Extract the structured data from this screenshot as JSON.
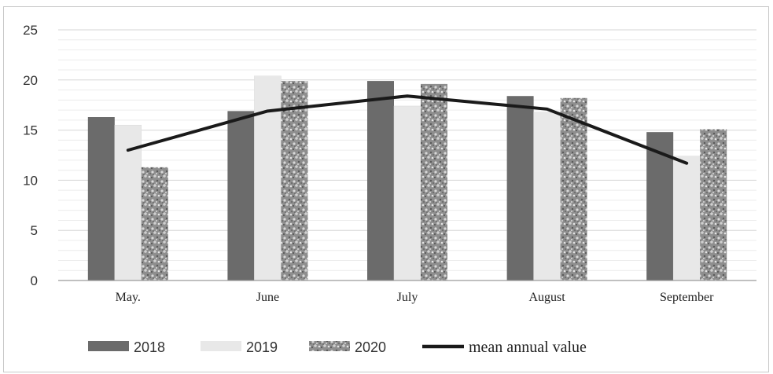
{
  "chart_data": {
    "type": "bar",
    "categories": [
      "May.",
      "June",
      "July",
      "August",
      "September"
    ],
    "series": [
      {
        "name": "2018",
        "values": [
          16.3,
          16.9,
          19.9,
          18.4,
          14.8
        ],
        "color": "#6b6b6b",
        "pattern": "solid"
      },
      {
        "name": "2019",
        "values": [
          15.5,
          20.4,
          17.4,
          16.8,
          12.4
        ],
        "color": "#e8e8e8",
        "pattern": "solid"
      },
      {
        "name": "2020",
        "values": [
          11.3,
          19.9,
          19.6,
          18.2,
          15.1
        ],
        "color": "#9a9a9a",
        "pattern": "speckle"
      }
    ],
    "line": {
      "name": "mean annual value",
      "values": [
        13.0,
        16.9,
        18.4,
        17.1,
        11.7
      ],
      "color": "#1a1a1a"
    },
    "ylim": [
      0,
      25
    ],
    "yticks": [
      0,
      5,
      10,
      15,
      20,
      25
    ],
    "minor_grid_step": 1,
    "grid": true,
    "legend": "bottom"
  }
}
